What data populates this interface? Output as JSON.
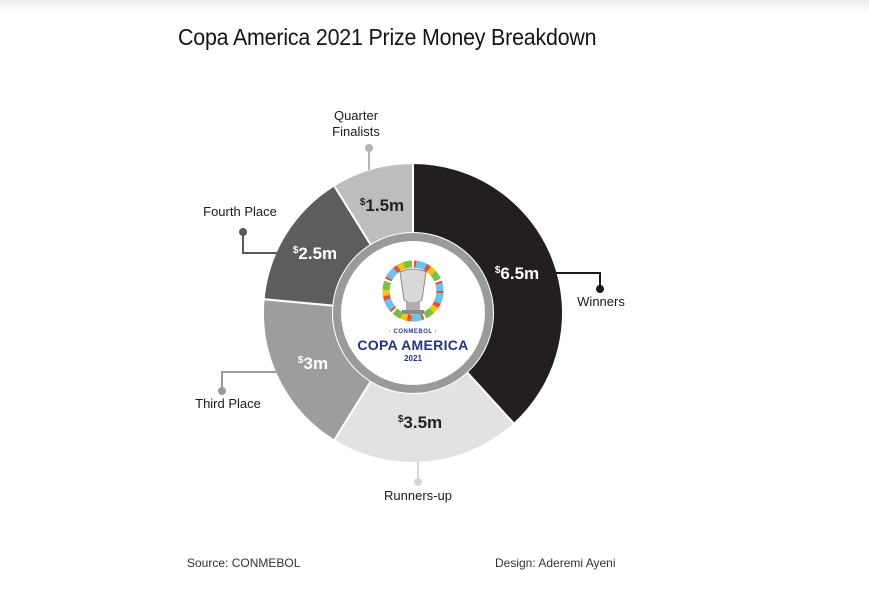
{
  "title": "Copa America 2021 Prize Money Breakdown",
  "footer": {
    "source": "Source: CONMEBOL",
    "design": "Design: Aderemi Ayeni"
  },
  "logo": {
    "small": "· CONMEBOL ·",
    "main": "COPA AMERICA",
    "year": "2021"
  },
  "chart_data": {
    "type": "pie",
    "donut": true,
    "currency_symbol": "$",
    "unit": "m",
    "categories": [
      "Winners",
      "Runners-up",
      "Third Place",
      "Fourth Place",
      "Quarter Finalists"
    ],
    "labels": [
      "Winners",
      "Runners-up",
      "Third Place",
      "Fourth Place",
      "Quarter\nFinalists"
    ],
    "values": [
      6.5,
      3.5,
      3,
      2.5,
      1.5
    ],
    "value_labels": [
      "6.5m",
      "3.5m",
      "3m",
      "2.5m",
      "1.5m"
    ],
    "colors": [
      "#231f20",
      "#e2e2e2",
      "#9d9d9d",
      "#5d5d5d",
      "#bdbdbd"
    ],
    "value_text_colors": [
      "#ffffff",
      "#222222",
      "#ffffff",
      "#ffffff",
      "#222222"
    ],
    "leader_colors": [
      "#1a1a1a",
      "#d6d6d6",
      "#9a9a9a",
      "#595959",
      "#b4b4b4"
    ]
  }
}
